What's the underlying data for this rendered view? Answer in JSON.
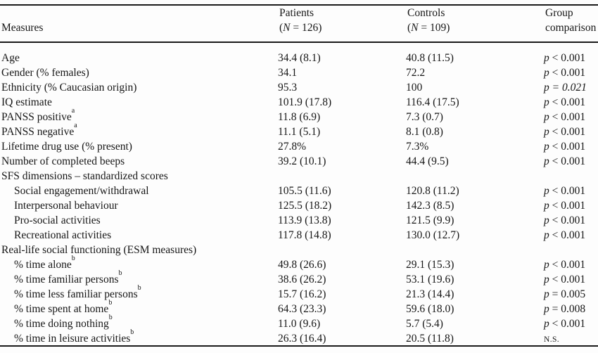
{
  "table": {
    "header": {
      "measures": "Measures",
      "patients": {
        "line1": "Patients",
        "paren_open": "(",
        "n": "N",
        "n_rest": " = 126)"
      },
      "controls": {
        "line1": "Controls",
        "paren_open": "(",
        "n": "N",
        "n_rest": " = 109)"
      },
      "group": {
        "line1": "Group",
        "line2": "comparison"
      }
    },
    "rows": [
      {
        "label": "Age",
        "sup": "",
        "indent": false,
        "section": false,
        "patients": "34.4 (8.1)",
        "controls": "40.8 (11.5)",
        "comp_symbol": "p",
        "comp_rest": " < 0.001",
        "comp_style": "normal"
      },
      {
        "label": "Gender (% females)",
        "sup": "",
        "indent": false,
        "section": false,
        "patients": "34.1",
        "controls": "72.2",
        "comp_symbol": "p",
        "comp_rest": " < 0.001",
        "comp_style": "normal"
      },
      {
        "label": "Ethnicity (% Caucasian origin)",
        "sup": "",
        "indent": false,
        "section": false,
        "patients": "95.3",
        "controls": "100",
        "comp_symbol": "p",
        "comp_rest": " = 0.021",
        "comp_style": "italic"
      },
      {
        "label": "IQ estimate",
        "sup": "",
        "indent": false,
        "section": false,
        "patients": "101.9 (17.8)",
        "controls": "116.4 (17.5)",
        "comp_symbol": "p",
        "comp_rest": " < 0.001",
        "comp_style": "normal"
      },
      {
        "label": "PANSS positive",
        "sup": "a",
        "indent": false,
        "section": false,
        "patients": "11.8 (6.9)",
        "controls": "7.3 (0.7)",
        "comp_symbol": "p",
        "comp_rest": " < 0.001",
        "comp_style": "normal"
      },
      {
        "label": "PANSS negative",
        "sup": "a",
        "indent": false,
        "section": false,
        "patients": "11.1 (5.1)",
        "controls": "8.1 (0.8)",
        "comp_symbol": "p",
        "comp_rest": " < 0.001",
        "comp_style": "normal"
      },
      {
        "label": "Lifetime drug use (% present)",
        "sup": "",
        "indent": false,
        "section": false,
        "patients": "27.8%",
        "controls": "7.3%",
        "comp_symbol": "p",
        "comp_rest": " < 0.001",
        "comp_style": "normal"
      },
      {
        "label": "Number of completed beeps",
        "sup": "",
        "indent": false,
        "section": false,
        "patients": "39.2 (10.1)",
        "controls": "44.4 (9.5)",
        "comp_symbol": "p",
        "comp_rest": " < 0.001",
        "comp_style": "normal"
      },
      {
        "label": "SFS dimensions – standardized scores",
        "sup": "",
        "indent": false,
        "section": true,
        "patients": "",
        "controls": "",
        "comp_symbol": "",
        "comp_rest": "",
        "comp_style": "normal"
      },
      {
        "label": "Social engagement/withdrawal",
        "sup": "",
        "indent": true,
        "section": false,
        "patients": "105.5 (11.6)",
        "controls": "120.8 (11.2)",
        "comp_symbol": "p",
        "comp_rest": " < 0.001",
        "comp_style": "normal"
      },
      {
        "label": "Interpersonal behaviour",
        "sup": "",
        "indent": true,
        "section": false,
        "patients": "125.5 (18.2)",
        "controls": "142.3 (8.5)",
        "comp_symbol": "p",
        "comp_rest": " < 0.001",
        "comp_style": "normal"
      },
      {
        "label": "Pro-social activities",
        "sup": "",
        "indent": true,
        "section": false,
        "patients": "113.9 (13.8)",
        "controls": "121.5 (9.9)",
        "comp_symbol": "p",
        "comp_rest": " < 0.001",
        "comp_style": "normal"
      },
      {
        "label": "Recreational activities",
        "sup": "",
        "indent": true,
        "section": false,
        "patients": "117.8 (14.8)",
        "controls": "130.0 (12.7)",
        "comp_symbol": "p",
        "comp_rest": " < 0.001",
        "comp_style": "normal"
      },
      {
        "label": "Real-life social functioning (ESM measures)",
        "sup": "",
        "indent": false,
        "section": true,
        "patients": "",
        "controls": "",
        "comp_symbol": "",
        "comp_rest": "",
        "comp_style": "normal"
      },
      {
        "label": "% time alone",
        "sup": "b",
        "indent": true,
        "section": false,
        "patients": "49.8 (26.6)",
        "controls": "29.1 (15.3)",
        "comp_symbol": "p",
        "comp_rest": " < 0.001",
        "comp_style": "normal"
      },
      {
        "label": "% time familiar persons",
        "sup": "b",
        "indent": true,
        "section": false,
        "patients": "38.6 (26.2)",
        "controls": "53.1 (19.6)",
        "comp_symbol": "p",
        "comp_rest": " < 0.001",
        "comp_style": "normal"
      },
      {
        "label": "% time less familiar persons",
        "sup": "b",
        "indent": true,
        "section": false,
        "patients": "15.7 (16.2)",
        "controls": "21.3 (14.4)",
        "comp_symbol": "p",
        "comp_rest": " = 0.005",
        "comp_style": "normal"
      },
      {
        "label": "% time spent at home",
        "sup": "b",
        "indent": true,
        "section": false,
        "patients": "64.3 (23.3)",
        "controls": "59.6 (18.0)",
        "comp_symbol": "p",
        "comp_rest": " = 0.008",
        "comp_style": "normal"
      },
      {
        "label": "% time doing nothing",
        "sup": "b",
        "indent": true,
        "section": false,
        "patients": "11.0 (9.6)",
        "controls": "5.7 (5.4)",
        "comp_symbol": "p",
        "comp_rest": " < 0.001",
        "comp_style": "normal"
      },
      {
        "label": "% time in leisure activities",
        "sup": "b",
        "indent": true,
        "section": false,
        "patients": "26.3 (16.4)",
        "controls": "20.5 (11.8)",
        "comp_symbol": "",
        "comp_rest": "N.S.",
        "comp_style": "ns"
      }
    ]
  }
}
